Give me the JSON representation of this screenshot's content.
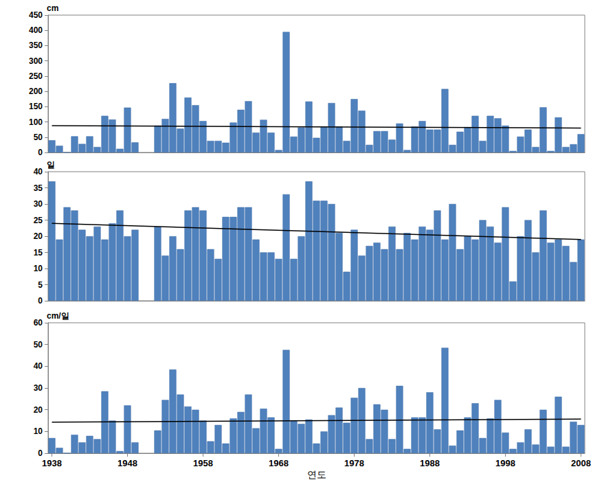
{
  "chart_data": [
    {
      "type": "bar",
      "y_label": "cm",
      "tick_labels": "y",
      "grid": false,
      "categories": [
        "1938",
        null,
        null,
        null,
        null,
        null,
        null,
        null,
        null,
        null,
        "1948",
        null,
        null,
        null,
        null,
        null,
        null,
        null,
        null,
        null,
        "1958",
        null,
        null,
        null,
        null,
        null,
        null,
        null,
        null,
        null,
        "1968",
        null,
        null,
        null,
        null,
        null,
        null,
        null,
        null,
        null,
        "1978",
        null,
        null,
        null,
        null,
        null,
        null,
        null,
        null,
        null,
        "1988",
        null,
        null,
        null,
        null,
        null,
        null,
        null,
        null,
        null,
        "1998",
        null,
        null,
        null,
        null,
        null,
        null,
        null,
        null,
        null,
        "2008"
      ],
      "ylim": [
        0,
        450
      ],
      "yticks": [
        0,
        50,
        100,
        150,
        200,
        250,
        300,
        350,
        400,
        450
      ],
      "series": [
        {
          "type": "bar",
          "color": "#4f81bd",
          "values": [
            40,
            22,
            0,
            53,
            28,
            53,
            18,
            120,
            108,
            12,
            147,
            33,
            null,
            null,
            88,
            110,
            227,
            78,
            180,
            155,
            103,
            38,
            38,
            32,
            98,
            140,
            168,
            65,
            107,
            65,
            8,
            395,
            52,
            82,
            167,
            48,
            85,
            162,
            85,
            38,
            175,
            137,
            25,
            70,
            70,
            42,
            95,
            8,
            85,
            103,
            75,
            75,
            208,
            25,
            68,
            83,
            120,
            38,
            120,
            112,
            88,
            5,
            52,
            75,
            18,
            148,
            5,
            115,
            18,
            27,
            60
          ]
        },
        {
          "type": "line",
          "color": "#000000",
          "values": [
            88,
            null,
            null,
            null,
            null,
            null,
            null,
            null,
            null,
            null,
            null,
            null,
            null,
            null,
            null,
            null,
            null,
            null,
            null,
            null,
            null,
            null,
            null,
            null,
            null,
            null,
            null,
            null,
            null,
            null,
            null,
            null,
            null,
            null,
            null,
            null,
            null,
            null,
            null,
            null,
            null,
            null,
            null,
            null,
            null,
            null,
            null,
            null,
            null,
            null,
            null,
            null,
            null,
            null,
            null,
            null,
            null,
            null,
            null,
            null,
            null,
            null,
            null,
            null,
            null,
            null,
            null,
            null,
            null,
            null,
            80
          ]
        }
      ]
    },
    {
      "type": "bar",
      "y_label": "일",
      "tick_labels": "y",
      "grid": false,
      "categories": [
        "1938",
        null,
        null,
        null,
        null,
        null,
        null,
        null,
        null,
        null,
        "1948",
        null,
        null,
        null,
        null,
        null,
        null,
        null,
        null,
        null,
        "1958",
        null,
        null,
        null,
        null,
        null,
        null,
        null,
        null,
        null,
        "1968",
        null,
        null,
        null,
        null,
        null,
        null,
        null,
        null,
        null,
        "1978",
        null,
        null,
        null,
        null,
        null,
        null,
        null,
        null,
        null,
        "1988",
        null,
        null,
        null,
        null,
        null,
        null,
        null,
        null,
        null,
        "1998",
        null,
        null,
        null,
        null,
        null,
        null,
        null,
        null,
        null,
        "2008"
      ],
      "ylim": [
        0,
        40
      ],
      "yticks": [
        0,
        5,
        10,
        15,
        20,
        25,
        30,
        35,
        40
      ],
      "series": [
        {
          "type": "bar",
          "color": "#4f81bd",
          "values": [
            37,
            19,
            29,
            28,
            22,
            20,
            23,
            19,
            24,
            28,
            20,
            22,
            null,
            null,
            23,
            14,
            20,
            16,
            28,
            29,
            28,
            16,
            13,
            26,
            26,
            29,
            29,
            19,
            15,
            15,
            13,
            33,
            13,
            20,
            37,
            31,
            31,
            30,
            21,
            9,
            22,
            14,
            17,
            18,
            16,
            23,
            16,
            21,
            19,
            23,
            22,
            28,
            19,
            30,
            16,
            20,
            19,
            25,
            23,
            18,
            29,
            6,
            20,
            25,
            15,
            28,
            18,
            19,
            17,
            12,
            19
          ]
        },
        {
          "type": "line",
          "color": "#000000",
          "values": [
            24,
            null,
            null,
            null,
            null,
            null,
            null,
            null,
            null,
            null,
            null,
            null,
            null,
            null,
            null,
            null,
            null,
            null,
            null,
            null,
            null,
            null,
            null,
            null,
            null,
            null,
            null,
            null,
            null,
            null,
            null,
            null,
            null,
            null,
            null,
            null,
            null,
            null,
            null,
            null,
            null,
            null,
            null,
            null,
            null,
            null,
            null,
            null,
            null,
            null,
            null,
            null,
            null,
            null,
            null,
            null,
            null,
            null,
            null,
            null,
            null,
            null,
            null,
            null,
            null,
            null,
            null,
            null,
            null,
            null,
            19
          ]
        }
      ]
    },
    {
      "type": "bar",
      "y_label": "cm/일",
      "x_label": "연도",
      "grid": false,
      "categories": [
        "1938",
        null,
        null,
        null,
        null,
        null,
        null,
        null,
        null,
        null,
        "1948",
        null,
        null,
        null,
        null,
        null,
        null,
        null,
        null,
        null,
        "1958",
        null,
        null,
        null,
        null,
        null,
        null,
        null,
        null,
        null,
        "1968",
        null,
        null,
        null,
        null,
        null,
        null,
        null,
        null,
        null,
        "1978",
        null,
        null,
        null,
        null,
        null,
        null,
        null,
        null,
        null,
        "1988",
        null,
        null,
        null,
        null,
        null,
        null,
        null,
        null,
        null,
        "1998",
        null,
        null,
        null,
        null,
        null,
        null,
        null,
        null,
        null,
        "2008"
      ],
      "ylim": [
        0,
        60
      ],
      "yticks": [
        0,
        10,
        20,
        30,
        40,
        50,
        60
      ],
      "series": [
        {
          "type": "bar",
          "color": "#4f81bd",
          "values": [
            7,
            2.5,
            0,
            8.5,
            5,
            8,
            6.5,
            28.5,
            15,
            1,
            22,
            5,
            null,
            null,
            10.5,
            24.5,
            38.5,
            27,
            21.5,
            20,
            15,
            5.5,
            13,
            4.5,
            16,
            19,
            27,
            11.5,
            20.5,
            16.5,
            2,
            47.5,
            15,
            13.5,
            15.5,
            4.5,
            10,
            17.5,
            21,
            14,
            25.5,
            30,
            6.5,
            22.5,
            20,
            6.5,
            31,
            2,
            16.5,
            16.5,
            28,
            11,
            48.5,
            3.5,
            10.5,
            16.5,
            23,
            7,
            16,
            24.5,
            9.5,
            2,
            5,
            11,
            4,
            20,
            3,
            26,
            3,
            14.5,
            13
          ]
        },
        {
          "type": "line",
          "color": "#000000",
          "values": [
            14.3,
            null,
            null,
            null,
            null,
            null,
            null,
            null,
            null,
            null,
            null,
            null,
            null,
            null,
            null,
            null,
            null,
            null,
            null,
            null,
            null,
            null,
            null,
            null,
            null,
            null,
            null,
            null,
            null,
            null,
            null,
            null,
            null,
            null,
            null,
            null,
            null,
            null,
            null,
            null,
            null,
            null,
            null,
            null,
            null,
            null,
            null,
            null,
            null,
            null,
            null,
            null,
            null,
            null,
            null,
            null,
            null,
            null,
            null,
            null,
            null,
            null,
            null,
            null,
            null,
            null,
            null,
            null,
            null,
            null,
            15.7
          ]
        }
      ]
    }
  ]
}
